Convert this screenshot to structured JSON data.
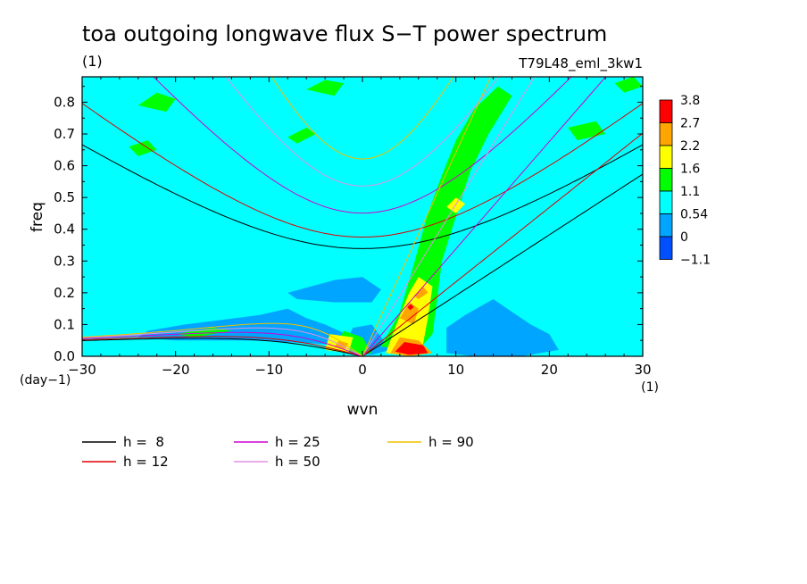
{
  "chart_data": {
    "type": "heatmap",
    "title": "toa outgoing longwave flux S−T power spectrum",
    "units_label": "(1)",
    "run_label": "T79L48_eml_3kw1",
    "xlabel": "wvn",
    "ylabel": "freq",
    "x_unit": "(1)",
    "y_unit": "(day−1)",
    "xlim": [
      -30,
      30
    ],
    "ylim": [
      0,
      0.88
    ],
    "x_ticks": [
      -30,
      -20,
      -10,
      0,
      10,
      20,
      30
    ],
    "y_ticks": [
      0.0,
      0.1,
      0.2,
      0.3,
      0.4,
      0.5,
      0.6,
      0.7,
      0.8
    ],
    "background_color": "#00ffff",
    "colorbar": {
      "labels": [
        "3.8",
        "2.7",
        "2.2",
        "1.6",
        "1.1",
        "0.54",
        "0",
        "−1.1"
      ],
      "colors": [
        "#ff0000",
        "#ffa500",
        "#ffff00",
        "#00ff00",
        "#00ffff",
        "#00a5ff",
        "#0050ff"
      ]
    },
    "contour_patches": [
      {
        "color": "#00a5ff",
        "points": [
          [
            -23,
            0.08
          ],
          [
            -19,
            0.1
          ],
          [
            -15,
            0.115
          ],
          [
            -11,
            0.13
          ],
          [
            -8,
            0.15
          ],
          [
            -6,
            0.12
          ],
          [
            -4,
            0.1
          ],
          [
            -1,
            0.06
          ],
          [
            -1,
            0.03
          ],
          [
            -5,
            0.04
          ],
          [
            -12,
            0.05
          ],
          [
            -20,
            0.05
          ],
          [
            -24,
            0.06
          ]
        ]
      },
      {
        "color": "#00a5ff",
        "points": [
          [
            -8,
            0.2
          ],
          [
            -3,
            0.24
          ],
          [
            0,
            0.25
          ],
          [
            2,
            0.21
          ],
          [
            1,
            0.17
          ],
          [
            -3,
            0.17
          ],
          [
            -7,
            0.18
          ]
        ]
      },
      {
        "color": "#00a5ff",
        "points": [
          [
            -2,
            0.035
          ],
          [
            -1,
            0.09
          ],
          [
            1,
            0.1
          ],
          [
            3,
            0.02
          ],
          [
            1,
            0.005
          ],
          [
            -1,
            0.01
          ]
        ]
      },
      {
        "color": "#00a5ff",
        "points": [
          [
            9,
            0.01
          ],
          [
            9,
            0.09
          ],
          [
            11,
            0.13
          ],
          [
            14,
            0.18
          ],
          [
            16,
            0.14
          ],
          [
            18,
            0.1
          ],
          [
            20,
            0.07
          ],
          [
            21,
            0.02
          ],
          [
            17,
            0.0
          ],
          [
            12,
            0.0
          ]
        ]
      },
      {
        "color": "#00ff00",
        "points": [
          [
            2,
            0.03
          ],
          [
            4,
            0.14
          ],
          [
            5.5,
            0.29
          ],
          [
            7,
            0.45
          ],
          [
            8.5,
            0.57
          ],
          [
            10,
            0.68
          ],
          [
            12,
            0.78
          ],
          [
            14.5,
            0.85
          ],
          [
            16,
            0.82
          ],
          [
            13.5,
            0.7
          ],
          [
            11.5,
            0.58
          ],
          [
            10,
            0.44
          ],
          [
            8.5,
            0.3
          ],
          [
            8,
            0.18
          ],
          [
            7.5,
            0.07
          ],
          [
            6,
            0.02
          ]
        ]
      },
      {
        "color": "#00ff00",
        "points": [
          [
            -3,
            0.03
          ],
          [
            -2,
            0.08
          ],
          [
            0,
            0.06
          ],
          [
            1,
            0.01
          ],
          [
            -1,
            0.005
          ]
        ]
      },
      {
        "color": "#00ff00",
        "points": [
          [
            -24,
            0.79
          ],
          [
            -22,
            0.83
          ],
          [
            -20,
            0.81
          ],
          [
            -21,
            0.77
          ]
        ]
      },
      {
        "color": "#00ff00",
        "points": [
          [
            -6,
            0.84
          ],
          [
            -4,
            0.87
          ],
          [
            -2,
            0.86
          ],
          [
            -3,
            0.82
          ]
        ]
      },
      {
        "color": "#00ff00",
        "points": [
          [
            -25,
            0.66
          ],
          [
            -23,
            0.68
          ],
          [
            -22,
            0.65
          ],
          [
            -24,
            0.63
          ]
        ]
      },
      {
        "color": "#00ff00",
        "points": [
          [
            22,
            0.72
          ],
          [
            25,
            0.74
          ],
          [
            26,
            0.7
          ],
          [
            23,
            0.68
          ]
        ]
      },
      {
        "color": "#00ff00",
        "points": [
          [
            27,
            0.86
          ],
          [
            29,
            0.88
          ],
          [
            30,
            0.85
          ],
          [
            28,
            0.83
          ]
        ]
      },
      {
        "color": "#00ff00",
        "points": [
          [
            -8,
            0.69
          ],
          [
            -6,
            0.72
          ],
          [
            -5,
            0.7
          ],
          [
            -7,
            0.67
          ]
        ]
      },
      {
        "color": "#00ff00",
        "points": [
          [
            -20,
            0.07
          ],
          [
            -16,
            0.09
          ],
          [
            -14,
            0.08
          ],
          [
            -18,
            0.06
          ]
        ]
      },
      {
        "color": "#ffff00",
        "points": [
          [
            2.5,
            0.01
          ],
          [
            3.5,
            0.09
          ],
          [
            5,
            0.2
          ],
          [
            6,
            0.25
          ],
          [
            7.5,
            0.22
          ],
          [
            7,
            0.12
          ],
          [
            6.5,
            0.04
          ],
          [
            5,
            0.0
          ]
        ]
      },
      {
        "color": "#ffff00",
        "points": [
          [
            -4,
            0.02
          ],
          [
            -3.5,
            0.07
          ],
          [
            -1,
            0.06
          ],
          [
            -1.5,
            0.01
          ]
        ]
      },
      {
        "color": "#ffff00",
        "points": [
          [
            9,
            0.47
          ],
          [
            10,
            0.5
          ],
          [
            11,
            0.48
          ],
          [
            10,
            0.45
          ]
        ]
      },
      {
        "color": "#ffa500",
        "points": [
          [
            3,
            0.01
          ],
          [
            4,
            0.06
          ],
          [
            6,
            0.05
          ],
          [
            7.5,
            0.01
          ],
          [
            5,
            0.0
          ]
        ]
      },
      {
        "color": "#ffa500",
        "points": [
          [
            4,
            0.12
          ],
          [
            5,
            0.17
          ],
          [
            6,
            0.15
          ],
          [
            5.5,
            0.1
          ]
        ]
      },
      {
        "color": "#ffa500",
        "points": [
          [
            5.5,
            0.19
          ],
          [
            6.5,
            0.22
          ],
          [
            7,
            0.2
          ],
          [
            6,
            0.18
          ]
        ]
      },
      {
        "color": "#ffa500",
        "points": [
          [
            -3,
            0.03
          ],
          [
            -2.5,
            0.05
          ],
          [
            -1.5,
            0.04
          ],
          [
            -2,
            0.02
          ]
        ]
      },
      {
        "color": "#ff0000",
        "points": [
          [
            3.5,
            0.015
          ],
          [
            4.5,
            0.045
          ],
          [
            6.5,
            0.035
          ],
          [
            7,
            0.01
          ],
          [
            5,
            0.005
          ]
        ]
      },
      {
        "color": "#ff0000",
        "points": [
          [
            4.8,
            0.155
          ],
          [
            5.2,
            0.165
          ],
          [
            5.5,
            0.155
          ],
          [
            5.1,
            0.145
          ]
        ]
      }
    ],
    "dispersion_legend": [
      {
        "label": "h =  8",
        "h": 8,
        "color": "#000000"
      },
      {
        "label": "h = 12",
        "h": 12,
        "color": "#e00000"
      },
      {
        "label": "h = 25",
        "h": 25,
        "color": "#d000d0"
      },
      {
        "label": "h = 50",
        "h": 50,
        "color": "#e090e0"
      },
      {
        "label": "h = 90",
        "h": 90,
        "color": "#f0c000"
      }
    ]
  }
}
